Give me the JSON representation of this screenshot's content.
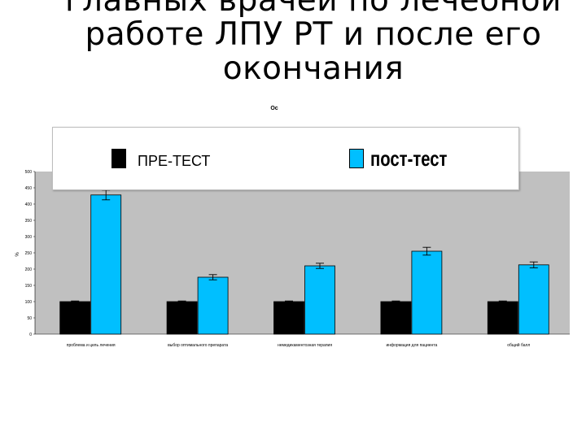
{
  "slide": {
    "title_lines": [
      "главных врачей по лечебной",
      "работе ЛПУ РТ и после его",
      "окончания"
    ]
  },
  "chart_data": {
    "type": "bar",
    "title": "Ос",
    "ylabel": "%",
    "ylim": [
      0,
      500
    ],
    "yticks": [
      0,
      50,
      100,
      150,
      200,
      250,
      300,
      350,
      400,
      450,
      500
    ],
    "grid": false,
    "plot_background": "#c0c0c0",
    "legend_position": "top",
    "categories": [
      "проблема и цель лечения",
      "выбор оптимального препарата",
      "немедикаментозная терапия",
      "информация для пациента",
      "общий балл"
    ],
    "series": [
      {
        "name": "ПРЕ-ТЕСТ",
        "color": "#000000",
        "values": [
          100,
          100,
          100,
          100,
          100
        ],
        "errors": [
          2,
          2,
          2,
          2,
          2
        ]
      },
      {
        "name": "пост-тест",
        "color": "#00bfff",
        "values": [
          428,
          175,
          210,
          255,
          213
        ],
        "errors": [
          15,
          8,
          8,
          12,
          9
        ]
      }
    ]
  }
}
